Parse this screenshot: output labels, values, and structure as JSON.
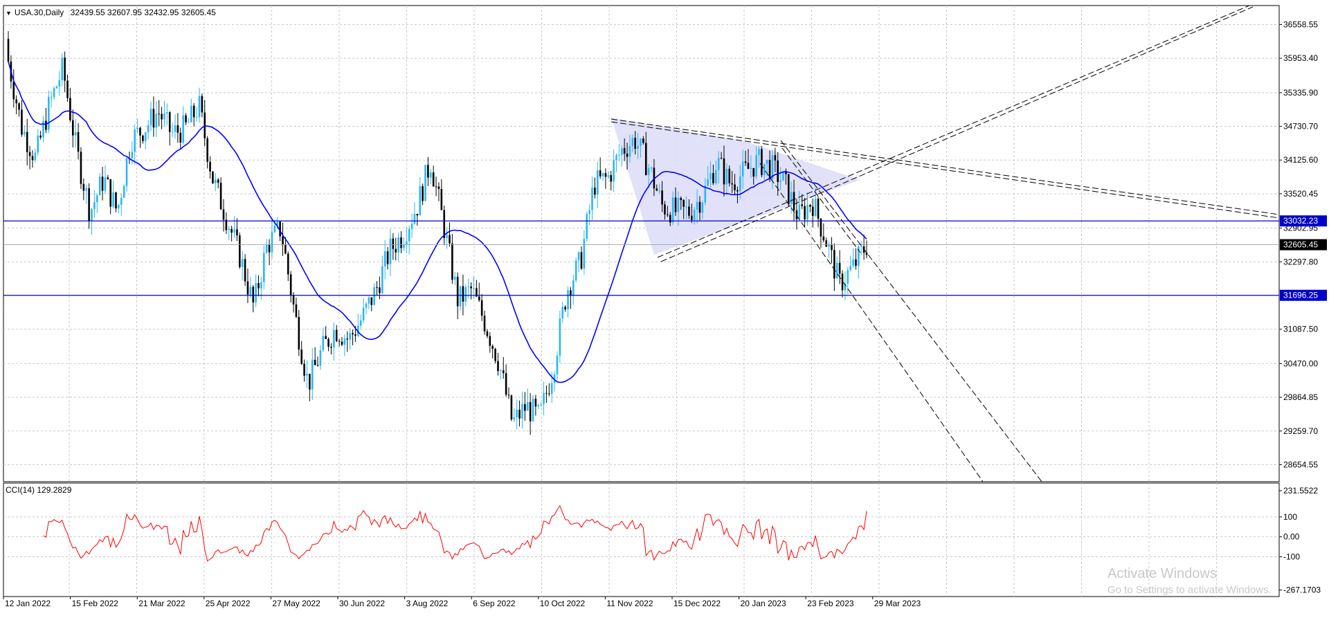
{
  "header": {
    "symbol": "USA.30,Daily",
    "ohlc": "32439.55 32607.95 32432.95 32605.45"
  },
  "indicator_label": "CCI(14) 129.2829",
  "watermark": {
    "title": "Activate Windows",
    "subtitle": "Go to Settings to activate Windows."
  },
  "colors": {
    "bull_candle": "#29b6f6",
    "bear_candle": "#000000",
    "moving_average": "#0000ff",
    "horizontal_level": "#0000cc",
    "cci_line": "#ff0000",
    "triangle_fill": "#dcdcf8"
  },
  "chart_data": [
    {
      "type": "candlestick",
      "title": "USA.30,Daily",
      "ylim": [
        28350,
        36900
      ],
      "y_ticks": [
        "36558.55",
        "35953.40",
        "35335.90",
        "34730.70",
        "34125.60",
        "33520.45",
        "32902.95",
        "32297.80",
        "31087.50",
        "30470.00",
        "29864.85",
        "29259.70",
        "28654.55"
      ],
      "x_ticks": [
        "12 Jan 2022",
        "15 Feb 2022",
        "21 Mar 2022",
        "25 Apr 2022",
        "27 May 2022",
        "30 Jun 2022",
        "3 Aug 2022",
        "6 Sep 2022",
        "10 Oct 2022",
        "11 Nov 2022",
        "15 Dec 2022",
        "20 Jan 2023",
        "23 Feb 2023",
        "29 Mar 2023"
      ],
      "price_markers": [
        {
          "value": "33032.23",
          "kind": "level"
        },
        {
          "value": "32605.45",
          "kind": "last"
        },
        {
          "value": "31696.25",
          "kind": "level"
        }
      ],
      "horizontal_levels": [
        33032.23,
        31696.25
      ],
      "last_price": 32605.45,
      "closes_weekly": [
        [
          "12 Jan 2022",
          35900
        ],
        [
          "19 Jan 2022",
          34700
        ],
        [
          "26 Jan 2022",
          34160
        ],
        [
          "2 Feb 2022",
          35100
        ],
        [
          "9 Feb 2022",
          35770
        ],
        [
          "16 Feb 2022",
          34300
        ],
        [
          "23 Feb 2022",
          33200
        ],
        [
          "2 Mar 2022",
          33800
        ],
        [
          "9 Mar 2022",
          33200
        ],
        [
          "16 Mar 2022",
          34500
        ],
        [
          "23 Mar 2022",
          34700
        ],
        [
          "30 Mar 2022",
          35000
        ],
        [
          "6 Apr 2022",
          34600
        ],
        [
          "13 Apr 2022",
          34700
        ],
        [
          "20 Apr 2022",
          35100
        ],
        [
          "27 Apr 2022",
          33800
        ],
        [
          "4 May 2022",
          33100
        ],
        [
          "11 May 2022",
          32400
        ],
        [
          "18 May 2022",
          31500
        ],
        [
          "25 May 2022",
          32600
        ],
        [
          "1 Jun 2022",
          32900
        ],
        [
          "8 Jun 2022",
          31400
        ],
        [
          "15 Jun 2022",
          30100
        ],
        [
          "22 Jun 2022",
          30700
        ],
        [
          "29 Jun 2022",
          31100
        ],
        [
          "6 Jul 2022",
          30900
        ],
        [
          "13 Jul 2022",
          31300
        ],
        [
          "20 Jul 2022",
          31800
        ],
        [
          "27 Jul 2022",
          32500
        ],
        [
          "3 Aug 2022",
          32800
        ],
        [
          "10 Aug 2022",
          33300
        ],
        [
          "17 Aug 2022",
          34100
        ],
        [
          "24 Aug 2022",
          32900
        ],
        [
          "31 Aug 2022",
          31600
        ],
        [
          "7 Sep 2022",
          31800
        ],
        [
          "14 Sep 2022",
          31200
        ],
        [
          "21 Sep 2022",
          30500
        ],
        [
          "28 Sep 2022",
          29400
        ],
        [
          "5 Oct 2022",
          29700
        ],
        [
          "12 Oct 2022",
          29500
        ],
        [
          "19 Oct 2022",
          30400
        ],
        [
          "26 Oct 2022",
          31800
        ],
        [
          "2 Nov 2022",
          32300
        ],
        [
          "9 Nov 2022",
          33700
        ],
        [
          "16 Nov 2022",
          33800
        ],
        [
          "23 Nov 2022",
          34300
        ],
        [
          "30 Nov 2022",
          34500
        ],
        [
          "7 Dec 2022",
          34000
        ],
        [
          "14 Dec 2022",
          33300
        ],
        [
          "21 Dec 2022",
          33200
        ],
        [
          "28 Dec 2022",
          33200
        ],
        [
          "4 Jan 2023",
          33500
        ],
        [
          "11 Jan 2023",
          34100
        ],
        [
          "18 Jan 2023",
          33700
        ],
        [
          "25 Jan 2023",
          33900
        ],
        [
          "1 Feb 2023",
          34100
        ],
        [
          "8 Feb 2023",
          34000
        ],
        [
          "15 Feb 2023",
          33700
        ],
        [
          "22 Feb 2023",
          33100
        ],
        [
          "1 Mar 2023",
          33400
        ],
        [
          "8 Mar 2023",
          32700
        ],
        [
          "15 Mar 2023",
          31900
        ],
        [
          "22 Mar 2023",
          32200
        ],
        [
          "29 Mar 2023",
          32605.45
        ]
      ],
      "extremes": {
        "high": 36558.55,
        "low": 28654.55
      }
    },
    {
      "type": "line",
      "title": "CCI(14) 129.2829",
      "ylim": [
        -300,
        270
      ],
      "y_ticks": [
        "231.5522",
        "100",
        "0.00",
        "-100",
        "-267.1703"
      ],
      "last_value": 129.2829
    }
  ]
}
